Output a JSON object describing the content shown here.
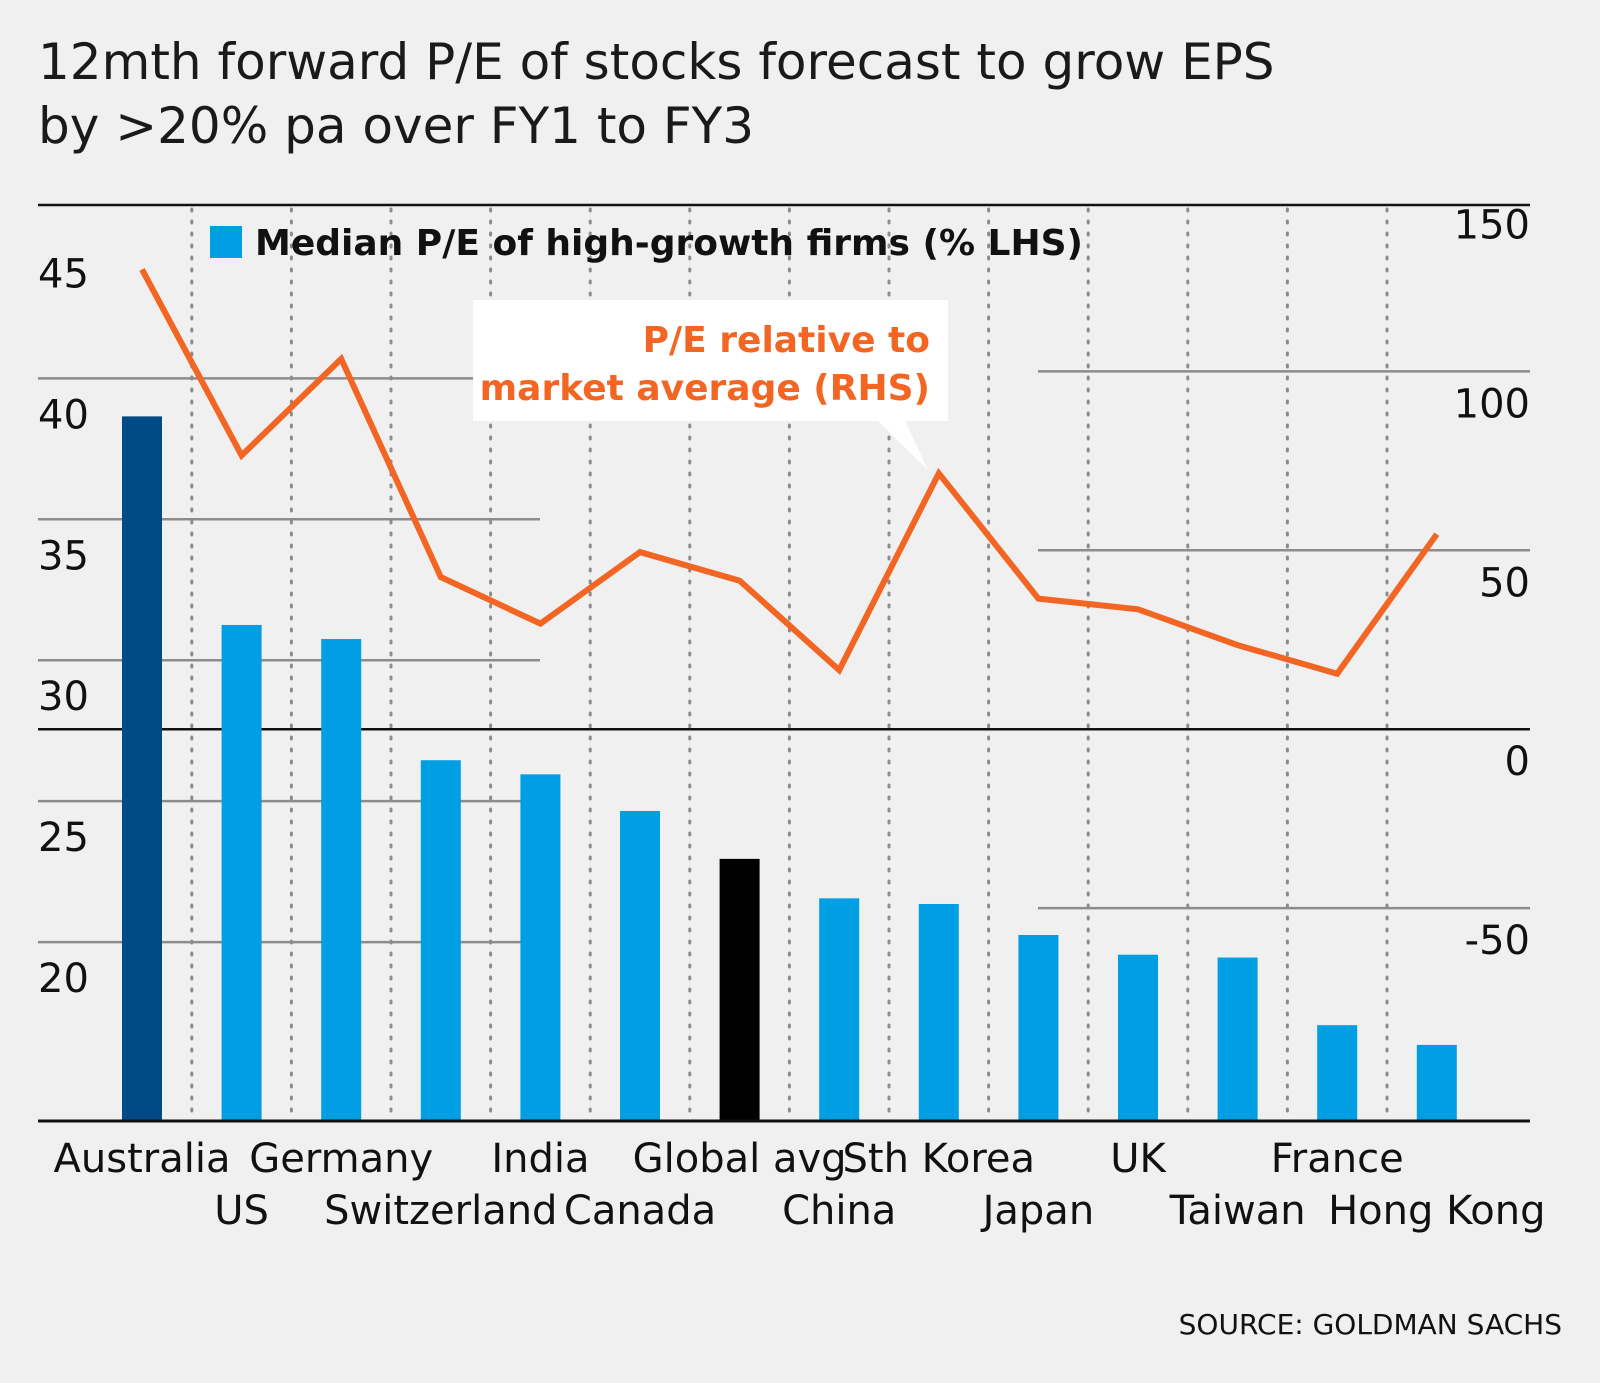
{
  "title_line1": "12mth forward P/E of stocks forecast to grow EPS",
  "title_line2": "by >20% pa over FY1 to FY3",
  "source": "SOURCE: GOLDMAN SACHS",
  "chart_data": {
    "type": "bar",
    "categories": [
      "Australia",
      "US",
      "Germany",
      "Switzerland",
      "India",
      "Canada",
      "Global avg",
      "China",
      "Sth Korea",
      "Japan",
      "UK",
      "Taiwan",
      "France",
      "Hong Kong"
    ],
    "category_label_rows": [
      0,
      1,
      0,
      1,
      0,
      1,
      0,
      1,
      0,
      1,
      0,
      1,
      0,
      1
    ],
    "series": [
      {
        "name": "Median P/E of high-growth firms (% LHS)",
        "axis": "left",
        "type": "bar",
        "values": [
          40.0,
          32.6,
          32.1,
          27.8,
          27.3,
          26.0,
          24.3,
          22.9,
          22.7,
          21.6,
          20.9,
          20.8,
          18.4,
          17.7
        ],
        "bar_colors": [
          "#004b87",
          "#009fe3",
          "#009fe3",
          "#009fe3",
          "#009fe3",
          "#009fe3",
          "#000000",
          "#009fe3",
          "#009fe3",
          "#009fe3",
          "#009fe3",
          "#009fe3",
          "#009fe3",
          "#009fe3"
        ]
      },
      {
        "name": "P/E relative to market average (RHS)",
        "axis": "right",
        "type": "line",
        "color": "#f26522",
        "values": [
          138,
          86,
          113,
          52,
          39,
          59,
          51,
          26,
          81,
          46,
          43,
          33,
          25,
          64
        ]
      }
    ],
    "left_axis": {
      "ylim": [
        15,
        47.5
      ],
      "ticks": [
        20,
        25,
        30,
        35,
        40,
        45
      ]
    },
    "right_axis": {
      "ylim": [
        -100,
        156
      ],
      "ticks": [
        -50,
        0,
        50,
        100,
        150
      ]
    },
    "legend_position": "top-left",
    "grid": true
  },
  "colors": {
    "background": "#f0f0f0",
    "bar_highlight": "#004b87",
    "bar_default": "#009fe3",
    "bar_average": "#000000",
    "line": "#f26522",
    "grid": "#8c8c8c",
    "axis": "#111111"
  }
}
